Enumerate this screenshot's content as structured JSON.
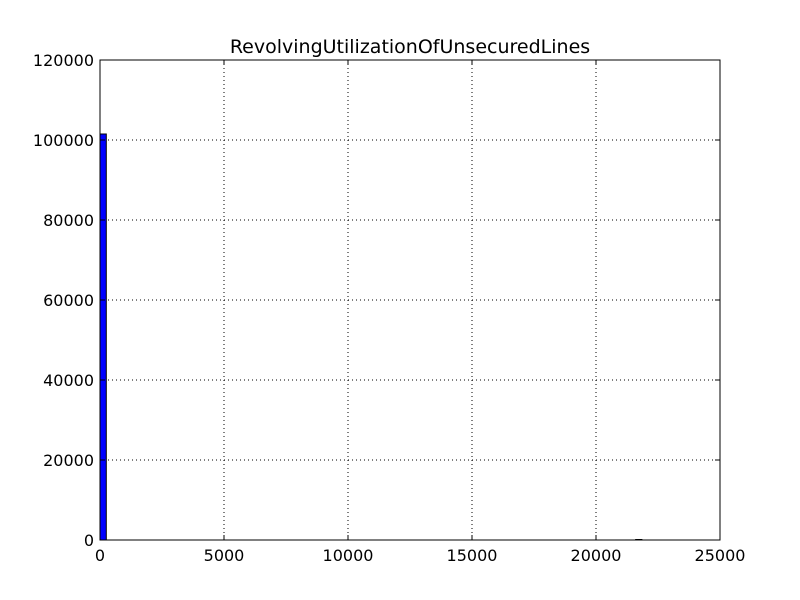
{
  "chart_data": {
    "type": "bar",
    "title": "RevolvingUtilizationOfUnsecuredLines",
    "xlabel": "",
    "ylabel": "",
    "xlim": [
      0,
      25000
    ],
    "ylim": [
      0,
      120000
    ],
    "x_ticks": [
      0,
      5000,
      10000,
      15000,
      20000,
      25000
    ],
    "y_ticks": [
      0,
      20000,
      40000,
      60000,
      80000,
      100000,
      120000
    ],
    "x_tick_labels": [
      "0",
      "5000",
      "10000",
      "15000",
      "20000",
      "25000"
    ],
    "y_tick_labels": [
      "0",
      "20000",
      "40000",
      "60000",
      "80000",
      "100000",
      "120000"
    ],
    "grid": true,
    "legend": "none",
    "bar_color": "#0000ff",
    "bins": [
      {
        "x0": 0,
        "x1": 254,
        "value": 101500
      },
      {
        "x0": 21600,
        "x1": 21850,
        "value": 1
      }
    ]
  }
}
